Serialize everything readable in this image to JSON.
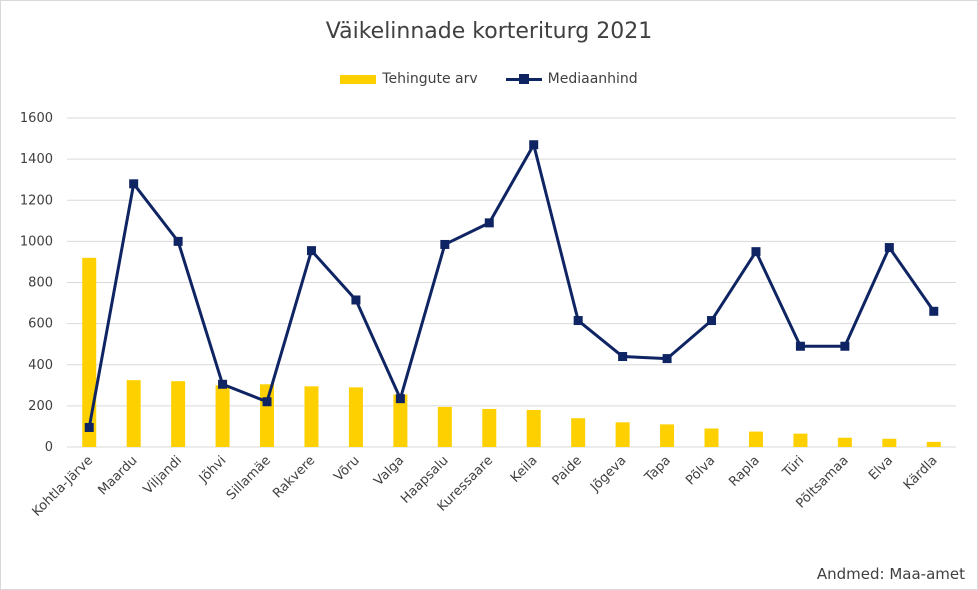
{
  "chart_data": {
    "type": "bar",
    "title": "Väikelinnade korteriturg 2021",
    "xlabel": "",
    "ylabel": "",
    "ylim": [
      0,
      1600
    ],
    "yticks": [
      0,
      200,
      400,
      600,
      800,
      1000,
      1200,
      1400,
      1600
    ],
    "grid": true,
    "legend_position": "top",
    "categories": [
      "Kohtla-Järve",
      "Maardu",
      "Viljandi",
      "Jõhvi",
      "Sillamäe",
      "Rakvere",
      "Võru",
      "Valga",
      "Haapsalu",
      "Kuressaare",
      "Keila",
      "Paide",
      "Jõgeva",
      "Tapa",
      "Põlva",
      "Rapla",
      "Türi",
      "Põltsamaa",
      "Elva",
      "Kärdla"
    ],
    "series": [
      {
        "name": "Tehingute arv",
        "type": "bar",
        "color": "#FFD000",
        "values": [
          920,
          325,
          320,
          300,
          305,
          295,
          290,
          255,
          195,
          185,
          180,
          140,
          120,
          110,
          90,
          75,
          65,
          45,
          40,
          25
        ]
      },
      {
        "name": "Mediaanhind",
        "type": "line",
        "color": "#0F2563",
        "values": [
          95,
          1280,
          1000,
          305,
          220,
          955,
          715,
          235,
          985,
          1090,
          1470,
          615,
          440,
          430,
          615,
          950,
          490,
          490,
          970,
          660
        ]
      }
    ],
    "source_note": "Andmed: Maa-amet"
  }
}
